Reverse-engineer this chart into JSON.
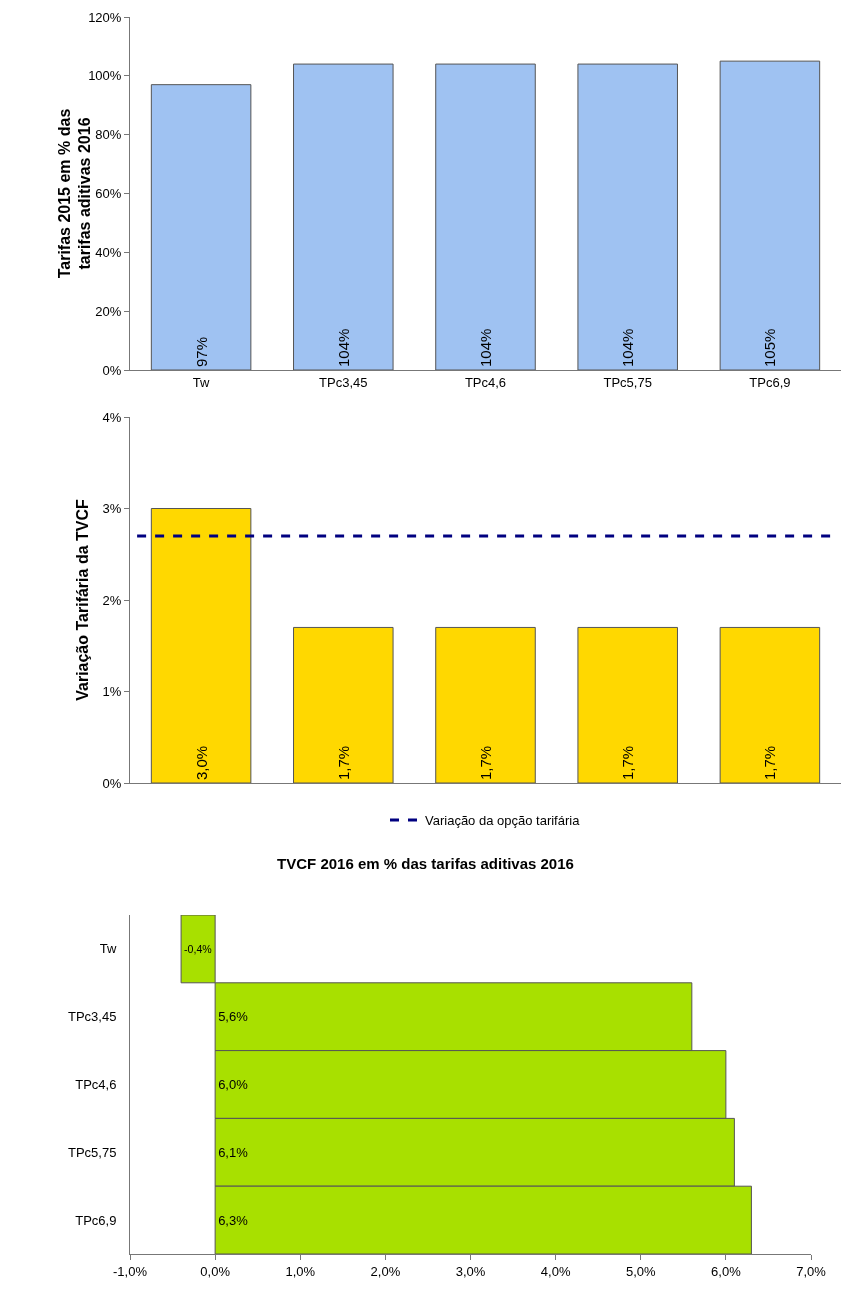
{
  "chart_data": [
    {
      "type": "bar",
      "ylabel": "Tarifas 2015 em % das tarifas aditivas 2016",
      "categories": [
        "Tw",
        "TPc3,45",
        "TPc4,6",
        "TPc5,75",
        "TPc6,9"
      ],
      "values": [
        97,
        104,
        104,
        104,
        105
      ],
      "value_labels": [
        "97%",
        "104%",
        "104%",
        "104%",
        "105%"
      ],
      "color": "#9fc2f2",
      "ylim": [
        0,
        120
      ],
      "yticks": [
        {
          "value": 0,
          "label": "0%"
        },
        {
          "value": 20,
          "label": "20%"
        },
        {
          "value": 40,
          "label": "40%"
        },
        {
          "value": 60,
          "label": "60%"
        },
        {
          "value": 80,
          "label": "80%"
        },
        {
          "value": 100,
          "label": "100%"
        },
        {
          "value": 120,
          "label": "120%"
        }
      ],
      "grid": false,
      "legend": false
    },
    {
      "type": "bar",
      "ylabel": "Variação Tarifária da TVCF",
      "categories": [
        null,
        null,
        null,
        null,
        null
      ],
      "values": [
        3.0,
        1.7,
        1.7,
        1.7,
        1.7
      ],
      "value_labels": [
        "3,0%",
        "1,7%",
        "1,7%",
        "1,7%",
        "1,7%"
      ],
      "color": "#ffd800",
      "ylim": [
        0,
        4
      ],
      "yticks": [
        {
          "value": 0,
          "label": "0%"
        },
        {
          "value": 1,
          "label": "1%"
        },
        {
          "value": 2,
          "label": "2%"
        },
        {
          "value": 3,
          "label": "3%"
        },
        {
          "value": 4,
          "label": "4%"
        }
      ],
      "grid": false,
      "legend": "bottom",
      "ref_lines": [
        {
          "axis": "y",
          "value": 2.7,
          "label": "Variação da opção tarifária",
          "color": "#000080",
          "line_style": "dashed"
        }
      ]
    },
    {
      "type": "bar",
      "orientation": "horizontal",
      "title": "TVCF 2016 em % das tarifas aditivas 2016",
      "categories": [
        "Tw",
        "TPc3,45",
        "TPc4,6",
        "TPc5,75",
        "TPc6,9"
      ],
      "values": [
        -0.4,
        5.6,
        6.0,
        6.1,
        6.3
      ],
      "value_labels": [
        "-0,4%",
        "5,6%",
        "6,0%",
        "6,1%",
        "6,3%"
      ],
      "color": "#a8e000",
      "xlim": [
        -1,
        7
      ],
      "xticks": [
        {
          "value": -1,
          "label": "-1,0%"
        },
        {
          "value": 0,
          "label": "0,0%"
        },
        {
          "value": 1,
          "label": "1,0%"
        },
        {
          "value": 2,
          "label": "2,0%"
        },
        {
          "value": 3,
          "label": "3,0%"
        },
        {
          "value": 4,
          "label": "4,0%"
        },
        {
          "value": 5,
          "label": "5,0%"
        },
        {
          "value": 6,
          "label": "6,0%"
        },
        {
          "value": 7,
          "label": "7,0%"
        }
      ],
      "grid": false,
      "legend": false
    }
  ]
}
